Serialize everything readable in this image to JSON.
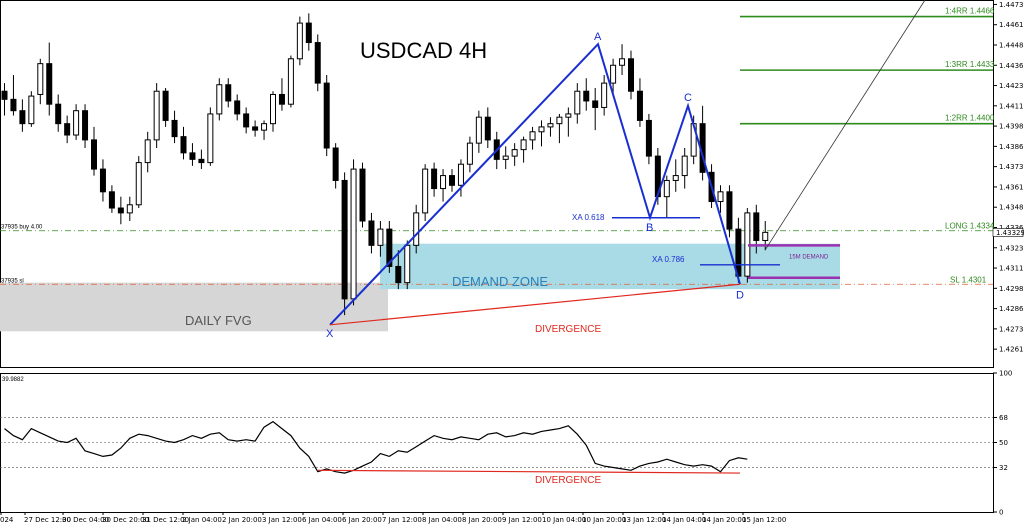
{
  "chart_data": {
    "type": "candlestick",
    "title": "USDCAD 4H",
    "price_axis": {
      "range": [
        1.425,
        1.4475
      ],
      "ticks": [
        "1.44735",
        "1.44610",
        "1.44485",
        "1.44360",
        "1.44235",
        "1.44110",
        "1.43985",
        "1.43860",
        "1.43735",
        "1.43610",
        "1.43485",
        "1.43360",
        "1.43235",
        "1.43110",
        "1.42985",
        "1.42860",
        "1.42735",
        "1.42610"
      ],
      "current_price": "1.43329"
    },
    "time_axis": {
      "ticks": [
        "024",
        "27 Dec 12:00",
        "30 Dec 04:00",
        "30 Dec 20:00",
        "31 Dec 12:00",
        "2 Jan 04:00",
        "2 Jan 20:00",
        "3 Jan 12:00",
        "6 Jan 04:00",
        "6 Jan 20:00",
        "7 Jan 12:00",
        "8 Jan 04:00",
        "8 Jan 20:00",
        "9 Jan 12:00",
        "10 Jan 04:00",
        "10 Jan 20:00",
        "13 Jan 12:00",
        "14 Jan 04:00",
        "14 Jan 20:00",
        "15 Jan 12:00"
      ]
    },
    "pattern": {
      "points": [
        {
          "name": "X",
          "price": 1.4276
        },
        {
          "name": "A",
          "price": 1.4449
        },
        {
          "name": "B",
          "price": 1.4342
        },
        {
          "name": "C",
          "price": 1.4411
        },
        {
          "name": "D",
          "price": 1.4301
        }
      ],
      "fib_labels": [
        {
          "text": "XA 0.618",
          "price": 1.4342
        },
        {
          "text": "XA 0.786",
          "price": 1.4313
        }
      ]
    },
    "zones": [
      {
        "label": "DEMAND ZONE",
        "from": 1.4298,
        "to": 1.4326,
        "color": "#a8dbe6"
      },
      {
        "label": "DAILY FVG",
        "from": 1.4272,
        "to": 1.4302,
        "color": "#d6d6d6"
      },
      {
        "label": "15M DEMAND",
        "from": 1.4305,
        "to": 1.4325,
        "color": "#9b30b0"
      }
    ],
    "levels": [
      {
        "label": "1:4RR 1.4466",
        "price": 1.4466,
        "color": "#2e8b1e"
      },
      {
        "label": "1:3RR 1.4433",
        "price": 1.4433,
        "color": "#2e8b1e"
      },
      {
        "label": "1:2RR 1.4400",
        "price": 1.44,
        "color": "#2e8b1e"
      },
      {
        "label": "LONG 1.4334",
        "price": 1.4334,
        "color": "#2e8b1e"
      },
      {
        "label": "SL 1.4301",
        "price": 1.4301,
        "color": "#2e8b1e"
      }
    ],
    "left_tags": [
      "37935 buy 4.00",
      "37935 sl"
    ],
    "annotations": [
      "DIVERGENCE",
      "DIVERGENCE"
    ],
    "indicator": {
      "label": "39.9882",
      "range": [
        0,
        100
      ],
      "ticks": [
        "100",
        "68",
        "50",
        "32",
        "0"
      ],
      "levels": [
        68,
        50,
        32
      ],
      "values": [
        60,
        55,
        52,
        60,
        57,
        54,
        51,
        50,
        53,
        44,
        42,
        40,
        41,
        46,
        53,
        56,
        55,
        53,
        51,
        50,
        52,
        55,
        53,
        56,
        57,
        52,
        51,
        52,
        51,
        61,
        65,
        60,
        55,
        46,
        40,
        29,
        31,
        29,
        28,
        30,
        33,
        36,
        42,
        40,
        44,
        43,
        47,
        51,
        55,
        53,
        52,
        54,
        53,
        52,
        56,
        57,
        54,
        55,
        57,
        56,
        58,
        59,
        60,
        62,
        56,
        48,
        35,
        33,
        32,
        31,
        30,
        33,
        35,
        36,
        38,
        36,
        34,
        33,
        34,
        33,
        29,
        37,
        39,
        38
      ]
    }
  }
}
